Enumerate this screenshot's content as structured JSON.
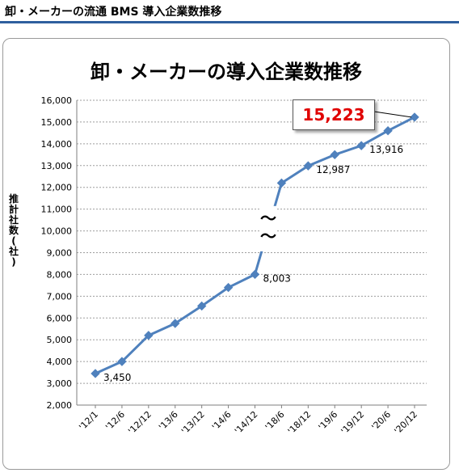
{
  "page_heading": "卸・メーカーの流通 BMS 導入企業数推移",
  "chart_data": {
    "type": "line",
    "title": "卸・メーカーの導入企業数推移",
    "ylabel": "推計社数(社)",
    "xlabel": "",
    "categories": [
      "'12/1",
      "'12/6",
      "'12/12",
      "'13/6",
      "'13/12",
      "'14/6",
      "'14/12",
      "'18/6",
      "'18/12",
      "'19/6",
      "'19/12",
      "'20/6",
      "'20/12"
    ],
    "values": [
      3450,
      4000,
      5200,
      5750,
      6550,
      7400,
      8003,
      12200,
      12987,
      13500,
      13916,
      14600,
      15223
    ],
    "ylim": [
      2000,
      16000
    ],
    "yticks": [
      2000,
      3000,
      4000,
      5000,
      6000,
      7000,
      8000,
      9000,
      10000,
      11000,
      12000,
      13000,
      14000,
      15000,
      16000
    ],
    "ytick_labels": [
      "2,000",
      "3,000",
      "4,000",
      "5,000",
      "6,000",
      "7,000",
      "8,000",
      "9,000",
      "10,000",
      "11,000",
      "12,000",
      "13,000",
      "14,000",
      "15,000",
      "16,000"
    ],
    "data_labels": [
      {
        "index": 0,
        "text": "3,450"
      },
      {
        "index": 6,
        "text": "8,003"
      },
      {
        "index": 8,
        "text": "12,987"
      },
      {
        "index": 10,
        "text": "13,916"
      }
    ],
    "break_symbol": "〜\n〜",
    "callout": {
      "index": 12,
      "text": "15,223"
    },
    "grid": true,
    "line_color": "#4f81bd"
  }
}
